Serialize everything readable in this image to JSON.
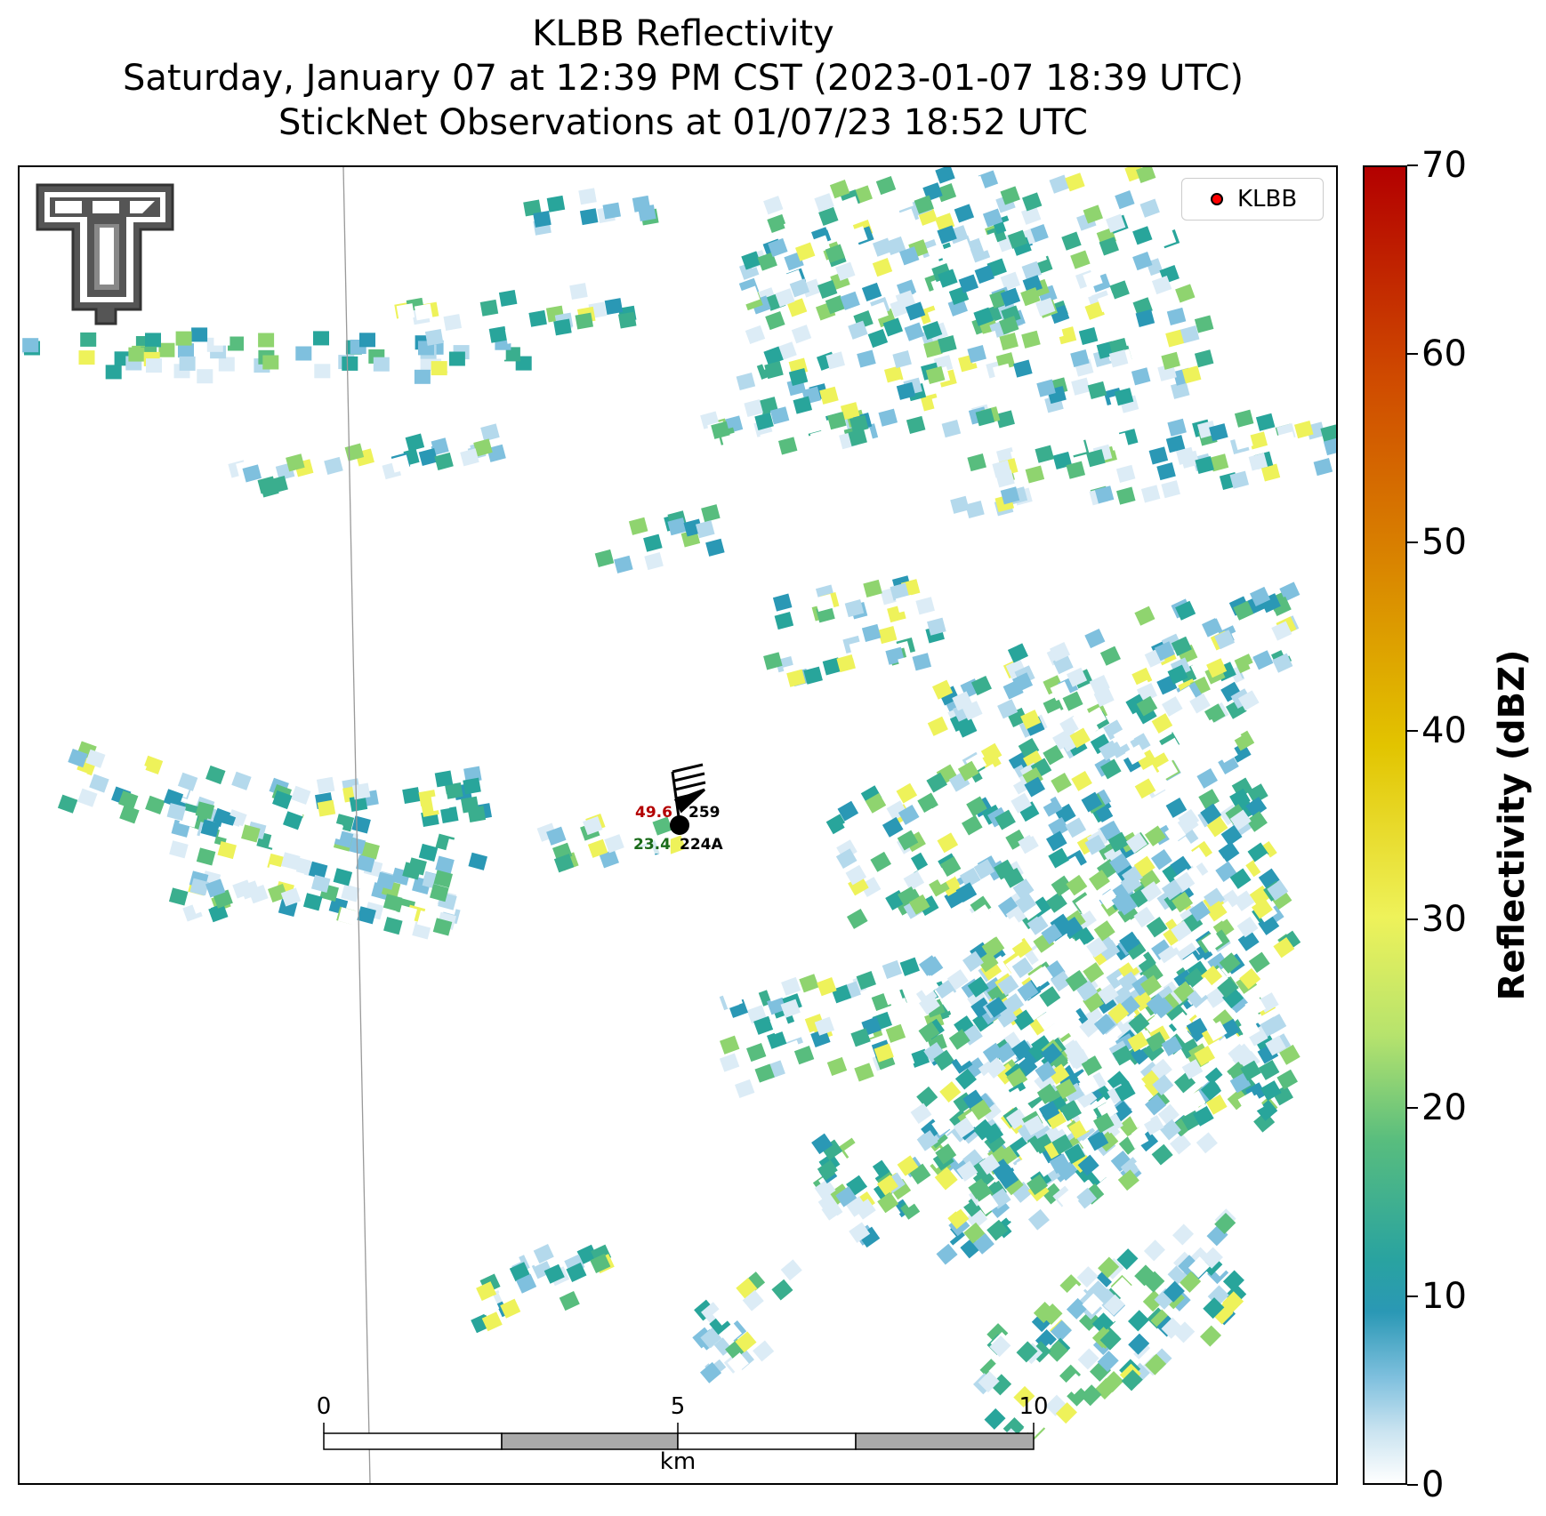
{
  "title": {
    "line1": "KLBB Reflectivity",
    "line2": "Saturday, January 07 at 12:39 PM CST (2023-01-07 18:39 UTC)",
    "line3": "StickNet Observations at 01/07/23 18:52 UTC"
  },
  "colorbar": {
    "label": "Reflectivity (dBZ)",
    "ticks": [
      "0",
      "10",
      "20",
      "30",
      "40",
      "50",
      "60",
      "70"
    ],
    "min": 0,
    "max": 70,
    "colors": [
      "#ffffff",
      "#7fc0de",
      "#2a98b5",
      "#58bd7e",
      "#eef25a",
      "#e2c400",
      "#d98400",
      "#b30000"
    ]
  },
  "legend": {
    "label": "KLBB",
    "marker_color": "#ff0000"
  },
  "scalebar": {
    "labels": [
      "0",
      "5",
      "10"
    ],
    "unit": "km"
  },
  "station_obs": {
    "temperature": "49.6",
    "dewpoint": "23.4",
    "station_ids": [
      "259",
      "224A"
    ],
    "temp_color": "#b30000",
    "dewpoint_color": "#1a6b1a"
  },
  "logo": {
    "icon": "texas-tech-double-t-logo"
  }
}
